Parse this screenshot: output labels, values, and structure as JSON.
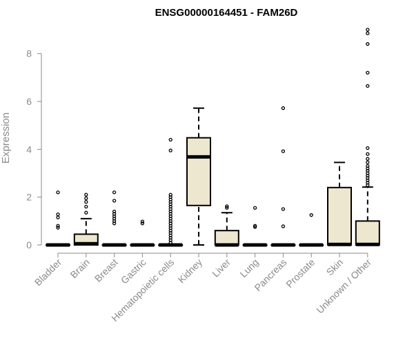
{
  "chart_data": {
    "type": "boxplot",
    "title": "ENSG00000164451 - FAM26D",
    "xlabel": "",
    "ylabel": "Expression",
    "ylim": [
      0,
      9
    ],
    "yticks": [
      0,
      2,
      4,
      6,
      8
    ],
    "grid": false,
    "colors": {
      "box_fill": "#ede7cf",
      "box_stroke": "#000000",
      "axis": "#8a8a8a"
    },
    "categories": [
      "Bladder",
      "Brain",
      "Breast",
      "Gastric",
      "Hematopoietic cells",
      "Kidney",
      "Liver",
      "Lung",
      "Pancreas",
      "Prostate",
      "Skin",
      "Unknown / Other"
    ],
    "boxes": [
      {
        "category": "Bladder",
        "whisker_low": 0,
        "q1": 0,
        "median": 0,
        "q3": 0,
        "whisker_high": 0,
        "outliers": [
          0.72,
          0.8,
          1.15,
          1.28,
          2.2
        ]
      },
      {
        "category": "Brain",
        "whisker_low": 0,
        "q1": 0,
        "median": 0.05,
        "q3": 0.45,
        "whisker_high": 1.1,
        "outliers": [
          1.35,
          1.6,
          1.8,
          1.95,
          2.1
        ]
      },
      {
        "category": "Breast",
        "whisker_low": 0,
        "q1": 0,
        "median": 0,
        "q3": 0,
        "whisker_high": 0,
        "outliers": [
          0.9,
          1.0,
          1.1,
          1.2,
          1.3,
          1.4,
          1.85,
          2.2
        ]
      },
      {
        "category": "Gastric",
        "whisker_low": 0,
        "q1": 0,
        "median": 0,
        "q3": 0,
        "whisker_high": 0,
        "outliers": [
          0.9,
          0.98
        ]
      },
      {
        "category": "Hematopoietic cells",
        "whisker_low": 0,
        "q1": 0,
        "median": 0,
        "q3": 0,
        "whisker_high": 0,
        "outliers": [
          0.1,
          0.2,
          0.3,
          0.4,
          0.5,
          0.6,
          0.7,
          0.8,
          0.9,
          1.0,
          1.1,
          1.2,
          1.3,
          1.4,
          1.5,
          1.6,
          1.7,
          1.8,
          1.9,
          2.0,
          2.1,
          3.95,
          4.4
        ]
      },
      {
        "category": "Kidney",
        "whisker_low": 0,
        "q1": 1.65,
        "median": 3.68,
        "q3": 4.48,
        "whisker_high": 5.72,
        "outliers": []
      },
      {
        "category": "Liver",
        "whisker_low": 0,
        "q1": 0,
        "median": 0,
        "q3": 0.6,
        "whisker_high": 1.35,
        "outliers": [
          1.55,
          1.62
        ]
      },
      {
        "category": "Lung",
        "whisker_low": 0,
        "q1": 0,
        "median": 0,
        "q3": 0,
        "whisker_high": 0,
        "outliers": [
          0.75,
          0.8,
          1.55
        ]
      },
      {
        "category": "Pancreas",
        "whisker_low": 0,
        "q1": 0,
        "median": 0,
        "q3": 0,
        "whisker_high": 0,
        "outliers": [
          0.78,
          1.5,
          3.92,
          5.72
        ]
      },
      {
        "category": "Prostate",
        "whisker_low": 0,
        "q1": 0,
        "median": 0,
        "q3": 0,
        "whisker_high": 0,
        "outliers": [
          1.25
        ]
      },
      {
        "category": "Skin",
        "whisker_low": 0,
        "q1": 0,
        "median": 0.02,
        "q3": 2.4,
        "whisker_high": 3.45,
        "outliers": []
      },
      {
        "category": "Unknown / Other",
        "whisker_low": 0,
        "q1": 0,
        "median": 0.02,
        "q3": 1.0,
        "whisker_high": 2.42,
        "outliers": [
          2.5,
          2.6,
          2.7,
          2.8,
          2.9,
          3.0,
          3.1,
          3.2,
          3.3,
          3.45,
          3.6,
          3.8,
          4.05,
          6.65,
          7.2,
          8.4,
          8.85,
          9.0
        ]
      }
    ]
  }
}
